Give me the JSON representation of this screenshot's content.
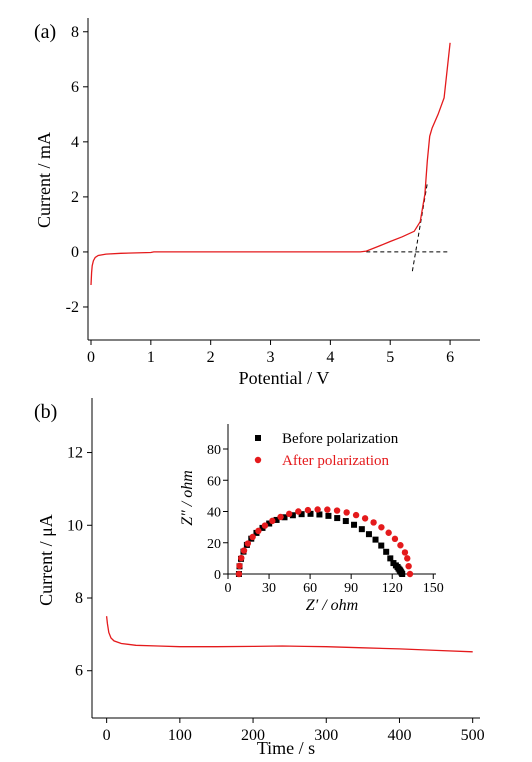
{
  "colors": {
    "red": "#e41a1c",
    "black": "#000000"
  },
  "chart_data": [
    {
      "panel_label": "(a)",
      "type": "line",
      "xlabel": "Potential / V",
      "ylabel": "Current / mA",
      "xlim": [
        -0.05,
        6.5
      ],
      "ylim": [
        -3.2,
        8.5
      ],
      "xticks": [
        "0",
        "1",
        "2",
        "3",
        "4",
        "5",
        "6"
      ],
      "yticks": [
        "-2",
        "0",
        "2",
        "4",
        "6",
        "8"
      ],
      "series": [
        {
          "color": "#e41a1c",
          "x": [
            0.0,
            0.01,
            0.02,
            0.04,
            0.07,
            0.12,
            0.25,
            0.5,
            1.0,
            1.05,
            1.5,
            2.5,
            3.5,
            4.0,
            4.5,
            4.6,
            4.8,
            5.0,
            5.2,
            5.4,
            5.5,
            5.58,
            5.62,
            5.66,
            5.7,
            5.8,
            5.9,
            5.95,
            6.0
          ],
          "y": [
            -1.2,
            -0.75,
            -0.5,
            -0.32,
            -0.2,
            -0.13,
            -0.08,
            -0.05,
            -0.02,
            0.0,
            0.0,
            0.0,
            0.0,
            0.0,
            0.0,
            0.03,
            0.2,
            0.38,
            0.55,
            0.75,
            1.1,
            2.1,
            3.3,
            4.2,
            4.5,
            5.0,
            5.6,
            6.6,
            7.6
          ]
        }
      ],
      "guides": [
        {
          "style": "dashed",
          "x": [
            4.6,
            6.0
          ],
          "y": [
            0.0,
            0.0
          ]
        },
        {
          "style": "dashed",
          "x": [
            5.37,
            5.62
          ],
          "y": [
            -0.7,
            2.5
          ]
        }
      ]
    },
    {
      "panel_label": "(b)",
      "type": "line",
      "xlabel": "Time / s",
      "ylabel": "Current / μA",
      "xlim": [
        -20,
        510
      ],
      "ylim": [
        4.7,
        13.5
      ],
      "xticks": [
        "0",
        "100",
        "200",
        "300",
        "400",
        "500"
      ],
      "yticks": [
        "6",
        "8",
        "10",
        "12"
      ],
      "series": [
        {
          "color": "#e41a1c",
          "x": [
            0,
            1,
            3,
            6,
            10,
            20,
            40,
            70,
            100,
            150,
            200,
            240,
            270,
            300,
            350,
            400,
            450,
            500
          ],
          "y": [
            7.5,
            7.3,
            7.05,
            6.9,
            6.82,
            6.75,
            6.7,
            6.68,
            6.66,
            6.66,
            6.67,
            6.68,
            6.67,
            6.66,
            6.63,
            6.6,
            6.56,
            6.52
          ]
        }
      ],
      "inset": {
        "type": "scatter",
        "xlabel": "Z′ / ohm",
        "ylabel": "Z″ / ohm",
        "xlim": [
          0,
          152
        ],
        "ylim": [
          0,
          96
        ],
        "xticks": [
          "0",
          "30",
          "60",
          "90",
          "120",
          "150"
        ],
        "yticks": [
          "0",
          "20",
          "40",
          "60",
          "80"
        ],
        "legend_position": "top",
        "series": [
          {
            "name": "Before polarization",
            "marker": "square",
            "color": "#000000",
            "x": [
              8.0,
              8.4,
              9.5,
              11.3,
              13.8,
              17.0,
              20.8,
              25.2,
              30.1,
              35.5,
              41.3,
              47.4,
              53.8,
              60.3,
              66.8,
              73.4,
              79.8,
              86.1,
              92.1,
              97.8,
              103.0,
              107.8,
              112.0,
              115.6,
              118.6,
              120.9,
              122.7,
              123.9,
              124.6,
              125.3,
              125.8,
              126.3,
              126.8,
              127.3
            ],
            "y": [
              0.0,
              4.9,
              9.7,
              14.3,
              18.6,
              22.6,
              26.3,
              29.5,
              32.3,
              34.6,
              36.3,
              37.6,
              38.3,
              38.5,
              38.1,
              37.2,
              35.8,
              33.9,
              31.5,
              28.7,
              25.5,
              22.0,
              18.2,
              14.2,
              10.0,
              7.0,
              5.5,
              4.5,
              3.5,
              2.8,
              2.2,
              1.5,
              0.8,
              0.0
            ]
          },
          {
            "name": "After polarization",
            "marker": "circle",
            "color": "#e41a1c",
            "x": [
              8.0,
              8.4,
              9.7,
              11.7,
              14.5,
              18.0,
              22.2,
              27.0,
              32.4,
              38.4,
              44.7,
              51.4,
              58.4,
              65.5,
              72.6,
              79.7,
              86.7,
              93.6,
              100.2,
              106.4,
              112.1,
              117.4,
              122.0,
              126.0,
              129.3,
              131.0,
              132.0,
              133.0
            ],
            "y": [
              0.0,
              5.2,
              10.2,
              15.0,
              19.5,
              23.7,
              27.6,
              31.0,
              34.0,
              36.5,
              38.5,
              40.0,
              40.9,
              41.3,
              41.2,
              40.6,
              39.4,
              37.7,
              35.6,
              33.0,
              29.9,
              26.4,
              22.5,
              18.4,
              13.8,
              10.0,
              5.0,
              0.0
            ]
          }
        ]
      }
    }
  ]
}
